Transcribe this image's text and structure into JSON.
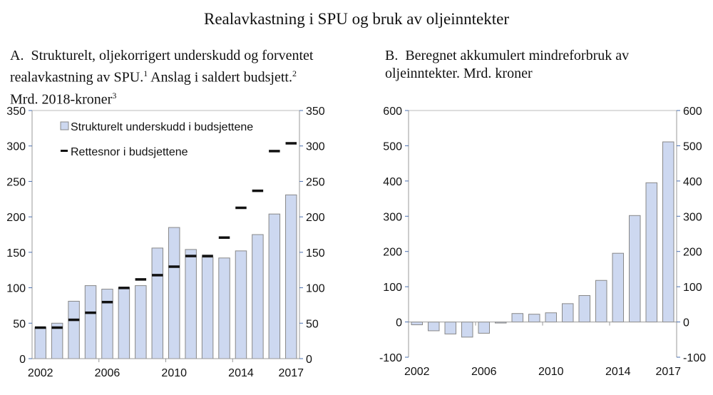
{
  "title": "Realavkastning i SPU og bruk av oljeinntekter",
  "panelA": {
    "label": "A.",
    "subtitle_parts": [
      "Strukturelt, oljekorrigert underskudd og forventet realavkastning av SPU.",
      "1",
      " Anslag i saldert budsjett.",
      "2",
      " Mrd. 2018-kroner",
      "3"
    ]
  },
  "panelB": {
    "label": "B.",
    "subtitle": "Beregnet akkumulert mindreforbruk av oljeinntekter. Mrd. kroner"
  },
  "chart_data": [
    {
      "type": "bar",
      "categories": [
        "2002",
        "2003",
        "2004",
        "2005",
        "2006",
        "2007",
        "2008",
        "2009",
        "2010",
        "2011",
        "2012",
        "2013",
        "2014",
        "2015",
        "2016",
        "2017"
      ],
      "x_tick_labels": [
        "2002",
        "2006",
        "2010",
        "2014",
        "2017"
      ],
      "series": [
        {
          "name": "Strukturelt underskudd i budsjettene",
          "kind": "bar",
          "color": "#cdd8f0",
          "values": [
            44,
            50,
            81,
            103,
            98,
            100,
            103,
            156,
            185,
            154,
            143,
            142,
            152,
            175,
            204,
            231
          ]
        },
        {
          "name": "Rettesnor i budsjettene",
          "kind": "marker",
          "color": "#111111",
          "values": [
            44,
            44,
            55,
            65,
            80,
            100,
            112,
            118,
            130,
            145,
            145,
            171,
            213,
            237,
            293,
            304
          ]
        }
      ],
      "ylim": [
        0,
        350
      ],
      "yticks": [
        0,
        50,
        100,
        150,
        200,
        250,
        300,
        350
      ],
      "legend_position": "top-left",
      "grid": false,
      "dual_axis_mirrored": true
    },
    {
      "type": "bar",
      "categories": [
        "2002",
        "2003",
        "2004",
        "2005",
        "2006",
        "2007",
        "2008",
        "2009",
        "2010",
        "2011",
        "2012",
        "2013",
        "2014",
        "2015",
        "2016",
        "2017"
      ],
      "x_tick_labels": [
        "2002",
        "2006",
        "2010",
        "2014",
        "2017"
      ],
      "values": [
        -8,
        -25,
        -34,
        -43,
        -32,
        -3,
        24,
        22,
        26,
        52,
        75,
        118,
        195,
        302,
        395,
        511
      ],
      "color": "#cdd8f0",
      "ylim": [
        -100,
        600
      ],
      "yticks": [
        -100,
        0,
        100,
        200,
        300,
        400,
        500,
        600
      ],
      "grid": false,
      "dual_axis_mirrored": true
    }
  ]
}
